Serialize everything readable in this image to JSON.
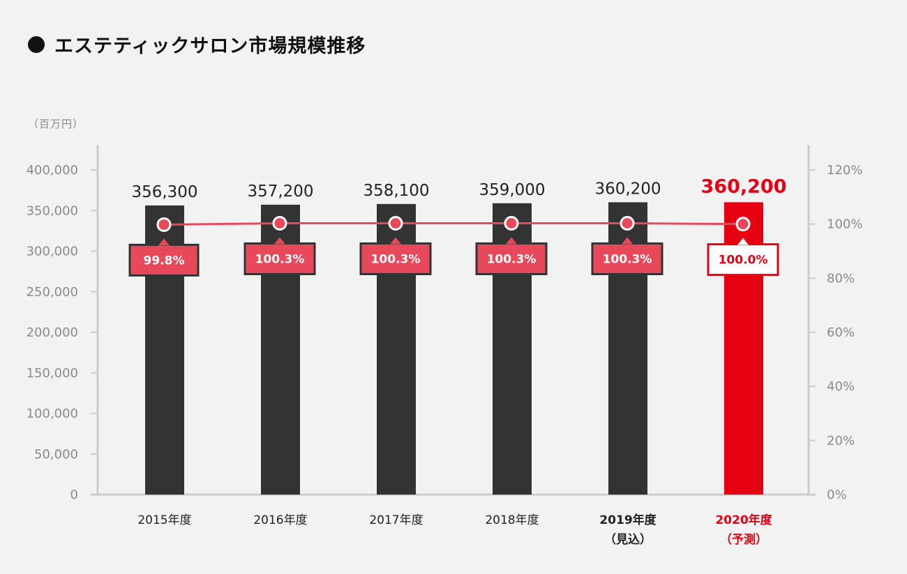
{
  "title": "エステティックサロン市場規模推移",
  "unit_label": "（百万円）",
  "chart_data": {
    "type": "bar",
    "categories": [
      {
        "line1": "2015年度",
        "line2": ""
      },
      {
        "line1": "2016年度",
        "line2": ""
      },
      {
        "line1": "2017年度",
        "line2": ""
      },
      {
        "line1": "2018年度",
        "line2": ""
      },
      {
        "line1": "2019年度",
        "line2": "（見込）"
      },
      {
        "line1": "2020年度",
        "line2": "（予測）"
      }
    ],
    "values": [
      356300,
      357200,
      358100,
      359000,
      360200,
      360200
    ],
    "value_labels": [
      "356,300",
      "357,200",
      "358,100",
      "359,000",
      "360,200",
      "360,200"
    ],
    "growth_series": {
      "values": [
        99.8,
        100.3,
        100.3,
        100.3,
        100.3,
        100.0
      ],
      "labels": [
        "99.8%",
        "100.3%",
        "100.3%",
        "100.3%",
        "100.3%",
        "100.0%"
      ]
    },
    "highlight_index": 5,
    "ylim": [
      0,
      400000
    ],
    "y_ticks": [
      0,
      50000,
      100000,
      150000,
      200000,
      250000,
      300000,
      350000,
      400000
    ],
    "y_tick_labels": [
      "0",
      "50,000",
      "100,000",
      "150,000",
      "200,000",
      "250,000",
      "300,000",
      "350,000",
      "400,000"
    ],
    "y2lim": [
      0,
      120
    ],
    "y2_ticks": [
      0,
      20,
      40,
      60,
      80,
      100,
      120
    ],
    "y2_tick_labels": [
      "0%",
      "20%",
      "40%",
      "60%",
      "80%",
      "100%",
      "120%"
    ],
    "grid": false,
    "colors": {
      "bar": "#333333",
      "highlight_bar": "#e60012",
      "line": "#e8495a",
      "badge": "#e8495a",
      "badge_border": "#333333",
      "axis": "#cccccc"
    }
  }
}
